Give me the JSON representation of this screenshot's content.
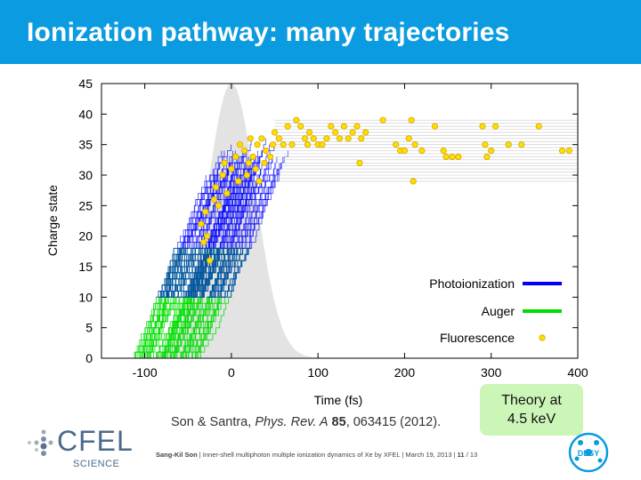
{
  "slide": {
    "title": "Ionization pathway: many trajectories",
    "citation_authors": "Son & Santra, ",
    "citation_journal": "Phys. Rev. A",
    "citation_volume": "85",
    "citation_rest": ", 063415 (2012).",
    "theory_line1": "Theory at",
    "theory_line2": "4.5 keV",
    "footer_author": "Sang-Kil Son",
    "footer_text": "| Inner-shell multiphoton multiple ionization dynamics of Xe by XFEL | March 19, 2013 |",
    "footer_page": "11",
    "footer_total": "/ 13",
    "logo_cfel_text": "CFEL",
    "logo_cfel_sub": "SCIENCE",
    "logo_desy_text": "DESY"
  },
  "chart_data": {
    "type": "line",
    "xlabel": "Time (fs)",
    "ylabel": "Charge state",
    "xlim": [
      -150,
      400
    ],
    "ylim": [
      0,
      45
    ],
    "xticks": [
      -100,
      0,
      100,
      200,
      300,
      400
    ],
    "yticks": [
      0,
      5,
      10,
      15,
      20,
      25,
      30,
      35,
      40,
      45
    ],
    "legend_position": "bottom-right",
    "series": [
      {
        "name": "Photoionization",
        "color": "#0000ff"
      },
      {
        "name": "Auger",
        "color": "#00dd00"
      },
      {
        "name": "Fluorescence",
        "color": "#ffdd00"
      }
    ],
    "pulse": {
      "color": "#e3e3e3",
      "center": 0,
      "sigma": 28,
      "peak": 45
    },
    "fluorescence_points": [
      [
        -35,
        22
      ],
      [
        -30,
        24
      ],
      [
        -28,
        20
      ],
      [
        -25,
        16
      ],
      [
        -32,
        19
      ],
      [
        -20,
        26
      ],
      [
        -15,
        25
      ],
      [
        -18,
        28
      ],
      [
        -10,
        30
      ],
      [
        -5,
        27
      ],
      [
        -8,
        32
      ],
      [
        0,
        31
      ],
      [
        5,
        33
      ],
      [
        8,
        29
      ],
      [
        10,
        35
      ],
      [
        15,
        34
      ],
      [
        18,
        30
      ],
      [
        20,
        32
      ],
      [
        22,
        36
      ],
      [
        25,
        33
      ],
      [
        28,
        31
      ],
      [
        30,
        35
      ],
      [
        32,
        29
      ],
      [
        35,
        36
      ],
      [
        38,
        32
      ],
      [
        40,
        34
      ],
      [
        45,
        33
      ],
      [
        48,
        35
      ],
      [
        50,
        37
      ],
      [
        55,
        36
      ],
      [
        60,
        35
      ],
      [
        65,
        38
      ],
      [
        70,
        35
      ],
      [
        75,
        39
      ],
      [
        80,
        38
      ],
      [
        85,
        36
      ],
      [
        88,
        35
      ],
      [
        90,
        37
      ],
      [
        95,
        36
      ],
      [
        100,
        35
      ],
      [
        105,
        35
      ],
      [
        110,
        36
      ],
      [
        115,
        38
      ],
      [
        120,
        37
      ],
      [
        125,
        36
      ],
      [
        130,
        38
      ],
      [
        135,
        36
      ],
      [
        140,
        37
      ],
      [
        145,
        38
      ],
      [
        148,
        32
      ],
      [
        150,
        36
      ],
      [
        155,
        37
      ],
      [
        175,
        39
      ],
      [
        190,
        35
      ],
      [
        195,
        34
      ],
      [
        200,
        34
      ],
      [
        205,
        36
      ],
      [
        208,
        39
      ],
      [
        210,
        29
      ],
      [
        212,
        35
      ],
      [
        220,
        34
      ],
      [
        235,
        38
      ],
      [
        245,
        34
      ],
      [
        248,
        33
      ],
      [
        255,
        33
      ],
      [
        262,
        33
      ],
      [
        290,
        38
      ],
      [
        293,
        35
      ],
      [
        295,
        33
      ],
      [
        300,
        34
      ],
      [
        305,
        38
      ],
      [
        320,
        35
      ],
      [
        335,
        35
      ],
      [
        355,
        38
      ],
      [
        382,
        34
      ],
      [
        390,
        34
      ]
    ]
  }
}
